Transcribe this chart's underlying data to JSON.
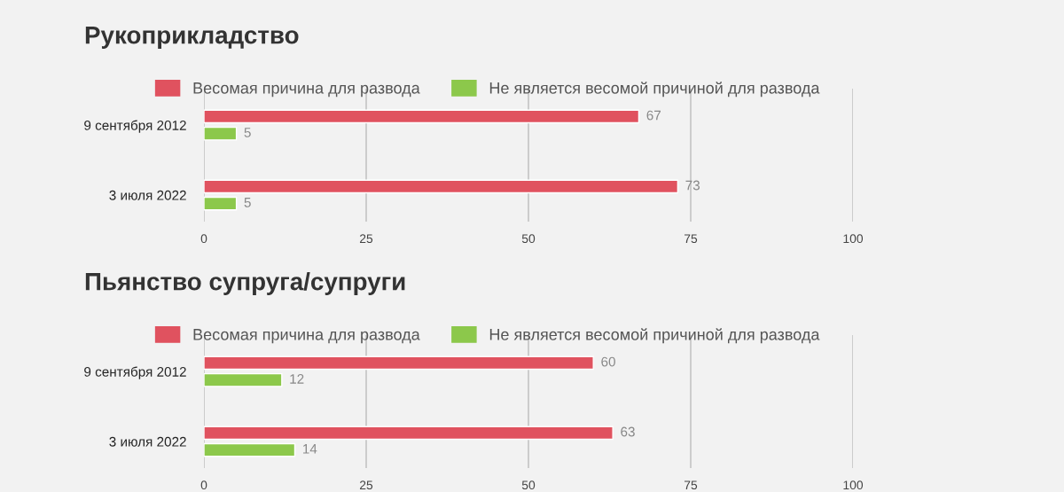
{
  "chart_data": [
    {
      "type": "bar",
      "orientation": "horizontal",
      "title": "Рукоприкладство",
      "categories": [
        "9 сентября 2012",
        "3 июля 2022"
      ],
      "series": [
        {
          "name": "Весомая причина для развода",
          "color": "#e0525f",
          "values": [
            67,
            73
          ]
        },
        {
          "name": "Не является весомой причиной для развода",
          "color": "#8cc84b",
          "values": [
            5,
            5
          ]
        }
      ],
      "xlim": [
        0,
        100
      ],
      "xticks": [
        0,
        25,
        50,
        75,
        100
      ],
      "grid": "x",
      "legend": "top",
      "data_labels": true
    },
    {
      "type": "bar",
      "orientation": "horizontal",
      "title": "Пьянство супруга/супруги",
      "categories": [
        "9 сентября 2012",
        "3 июля 2022"
      ],
      "series": [
        {
          "name": "Весомая причина для развода",
          "color": "#e0525f",
          "values": [
            60,
            63
          ]
        },
        {
          "name": "Не является весомой причиной для развода",
          "color": "#8cc84b",
          "values": [
            12,
            14
          ]
        }
      ],
      "xlim": [
        0,
        100
      ],
      "xticks": [
        0,
        25,
        50,
        75,
        100
      ],
      "grid": "x",
      "legend": "top",
      "data_labels": true
    }
  ]
}
